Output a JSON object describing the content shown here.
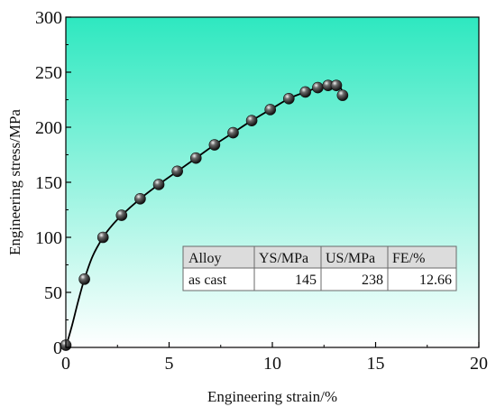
{
  "chart_data": {
    "type": "scatter",
    "title": "",
    "xlabel": "Engineering strain/%",
    "ylabel": "Engineering stress/MPa",
    "xlim": [
      0,
      20
    ],
    "ylim": [
      0,
      300
    ],
    "xticks": [
      "0",
      "5",
      "10",
      "15",
      "20"
    ],
    "yticks": [
      "0",
      "50",
      "100",
      "150",
      "200",
      "250",
      "300"
    ],
    "grid": false,
    "background": "cyan-green to white vertical gradient",
    "colors": {
      "gradient_top": "#2ee8c0",
      "gradient_bottom": "#ffffff",
      "line": "#000000",
      "marker": "#1a1a1a"
    },
    "series": [
      {
        "points": [
          [
            0.0,
            2
          ],
          [
            0.9,
            62
          ],
          [
            1.8,
            100
          ],
          [
            2.7,
            120
          ],
          [
            3.6,
            135
          ],
          [
            4.5,
            148
          ],
          [
            5.4,
            160
          ],
          [
            6.3,
            172
          ],
          [
            7.2,
            184
          ],
          [
            8.1,
            195
          ],
          [
            9.0,
            206
          ],
          [
            9.9,
            216
          ],
          [
            10.8,
            226
          ],
          [
            11.6,
            232
          ],
          [
            12.2,
            236
          ],
          [
            12.7,
            238
          ],
          [
            13.1,
            238
          ],
          [
            13.4,
            229
          ]
        ]
      }
    ],
    "curve": [
      [
        0,
        0
      ],
      [
        0.3,
        20
      ],
      [
        0.6,
        42
      ],
      [
        0.9,
        62
      ],
      [
        1.3,
        83
      ],
      [
        1.8,
        100
      ],
      [
        2.2,
        110
      ],
      [
        2.7,
        120
      ],
      [
        3.6,
        135
      ],
      [
        4.5,
        148
      ],
      [
        5.4,
        160
      ],
      [
        6.3,
        172
      ],
      [
        7.2,
        184
      ],
      [
        8.1,
        195
      ],
      [
        9.0,
        206
      ],
      [
        9.9,
        216
      ],
      [
        10.8,
        226
      ],
      [
        11.6,
        232
      ],
      [
        12.2,
        236
      ],
      [
        12.7,
        238
      ],
      [
        13.1,
        238
      ],
      [
        13.3,
        236
      ],
      [
        13.45,
        229
      ]
    ],
    "table": {
      "headers": [
        "Alloy",
        "YS/MPa",
        "US/MPa",
        "FE/%"
      ],
      "rows": [
        [
          "as cast",
          "145",
          "238",
          "12.66"
        ]
      ]
    }
  }
}
